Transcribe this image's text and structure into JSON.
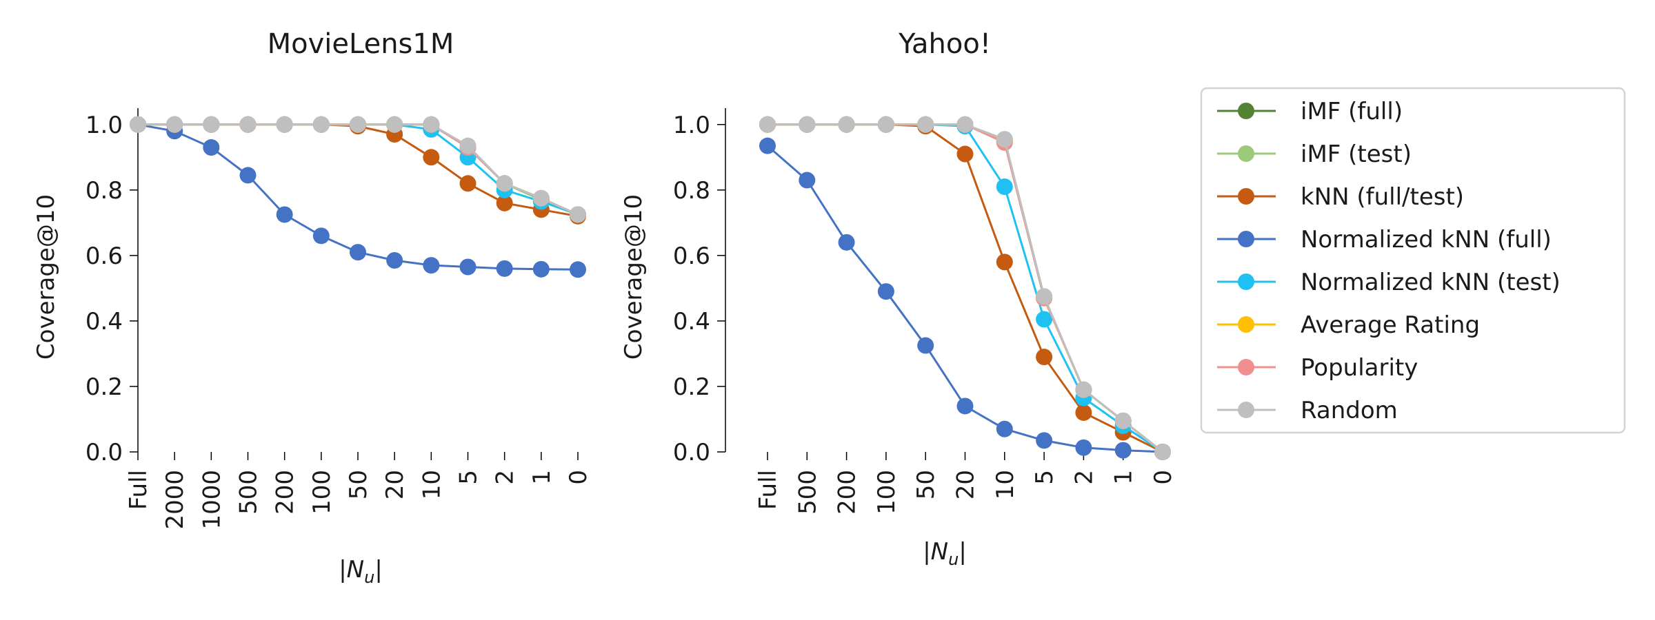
{
  "chart_data": [
    {
      "type": "line",
      "title": "MovieLens1M",
      "xlabel": "|N_u|",
      "ylabel": "Coverage@10",
      "categories": [
        "Full",
        "2000",
        "1000",
        "500",
        "200",
        "100",
        "50",
        "20",
        "10",
        "5",
        "2",
        "1",
        "0"
      ],
      "ylim": [
        0,
        1.05
      ],
      "yticks": [
        "0.0",
        "0.2",
        "0.4",
        "0.6",
        "0.8",
        "1.0"
      ],
      "grid": false,
      "series": [
        {
          "name": "iMF (full)",
          "values": [
            1.0,
            1.0,
            1.0,
            1.0,
            1.0,
            1.0,
            1.0,
            1.0,
            1.0,
            0.93,
            0.82,
            0.77,
            0.725
          ]
        },
        {
          "name": "iMF (test)",
          "values": [
            1.0,
            1.0,
            1.0,
            1.0,
            1.0,
            1.0,
            1.0,
            1.0,
            1.0,
            0.93,
            0.82,
            0.77,
            0.725
          ]
        },
        {
          "name": "kNN (full/test)",
          "values": [
            1.0,
            1.0,
            1.0,
            1.0,
            1.0,
            1.0,
            0.995,
            0.97,
            0.9,
            0.82,
            0.76,
            0.74,
            0.72
          ]
        },
        {
          "name": "Normalized kNN (full)",
          "values": [
            1.0,
            0.98,
            0.93,
            0.845,
            0.725,
            0.66,
            0.61,
            0.585,
            0.57,
            0.565,
            0.56,
            0.558,
            0.557
          ]
        },
        {
          "name": "Normalized kNN (test)",
          "values": [
            1.0,
            1.0,
            1.0,
            1.0,
            1.0,
            1.0,
            1.0,
            1.0,
            0.985,
            0.9,
            0.8,
            0.765,
            0.725
          ]
        },
        {
          "name": "Average Rating",
          "values": [
            1.0,
            1.0,
            1.0,
            1.0,
            1.0,
            1.0,
            1.0,
            1.0,
            1.0,
            0.93,
            0.82,
            0.775,
            0.725
          ]
        },
        {
          "name": "Popularity",
          "values": [
            1.0,
            1.0,
            1.0,
            1.0,
            1.0,
            1.0,
            1.0,
            1.0,
            1.0,
            0.93,
            0.82,
            0.775,
            0.725
          ]
        },
        {
          "name": "Random",
          "values": [
            1.0,
            1.0,
            1.0,
            1.0,
            1.0,
            1.0,
            1.0,
            1.0,
            1.0,
            0.935,
            0.82,
            0.775,
            0.725
          ]
        }
      ]
    },
    {
      "type": "line",
      "title": "Yahoo!",
      "xlabel": "|N_u|",
      "ylabel": "Coverage@10",
      "categories": [
        "Full",
        "500",
        "200",
        "100",
        "50",
        "20",
        "10",
        "5",
        "2",
        "1",
        "0"
      ],
      "ylim": [
        0,
        1.05
      ],
      "yticks": [
        "0.0",
        "0.2",
        "0.4",
        "0.6",
        "0.8",
        "1.0"
      ],
      "grid": false,
      "series": [
        {
          "name": "iMF (full)",
          "values": [
            1.0,
            1.0,
            1.0,
            1.0,
            1.0,
            1.0,
            0.95,
            0.47,
            0.19,
            0.095,
            0.0
          ]
        },
        {
          "name": "iMF (test)",
          "values": [
            1.0,
            1.0,
            1.0,
            1.0,
            1.0,
            1.0,
            0.95,
            0.47,
            0.19,
            0.095,
            0.0
          ]
        },
        {
          "name": "kNN (full/test)",
          "values": [
            1.0,
            1.0,
            1.0,
            1.0,
            0.995,
            0.91,
            0.58,
            0.29,
            0.12,
            0.06,
            0.0
          ]
        },
        {
          "name": "Normalized kNN (full)",
          "values": [
            0.935,
            0.83,
            0.64,
            0.49,
            0.325,
            0.14,
            0.07,
            0.035,
            0.013,
            0.005,
            0.0
          ]
        },
        {
          "name": "Normalized kNN (test)",
          "values": [
            1.0,
            1.0,
            1.0,
            1.0,
            1.0,
            0.995,
            0.81,
            0.405,
            0.165,
            0.08,
            0.0
          ]
        },
        {
          "name": "Average Rating",
          "values": [
            1.0,
            1.0,
            1.0,
            1.0,
            1.0,
            1.0,
            0.95,
            0.47,
            0.19,
            0.095,
            0.0
          ]
        },
        {
          "name": "Popularity",
          "values": [
            1.0,
            1.0,
            1.0,
            1.0,
            1.0,
            1.0,
            0.945,
            0.47,
            0.19,
            0.095,
            0.0
          ]
        },
        {
          "name": "Random",
          "values": [
            1.0,
            1.0,
            1.0,
            1.0,
            1.0,
            1.0,
            0.955,
            0.475,
            0.19,
            0.095,
            0.0
          ]
        }
      ]
    }
  ],
  "legend": {
    "placement": "right",
    "entries": [
      {
        "label": "iMF (full)",
        "color": "#548235"
      },
      {
        "label": "iMF (test)",
        "color": "#9dc97a"
      },
      {
        "label": "kNN (full/test)",
        "color": "#c55a11"
      },
      {
        "label": "Normalized kNN (full)",
        "color": "#4472c4"
      },
      {
        "label": "Normalized kNN (test)",
        "color": "#1fc1f2"
      },
      {
        "label": "Average Rating",
        "color": "#ffc000"
      },
      {
        "label": "Popularity",
        "color": "#f08f8f"
      },
      {
        "label": "Random",
        "color": "#bfbfbf"
      }
    ]
  }
}
